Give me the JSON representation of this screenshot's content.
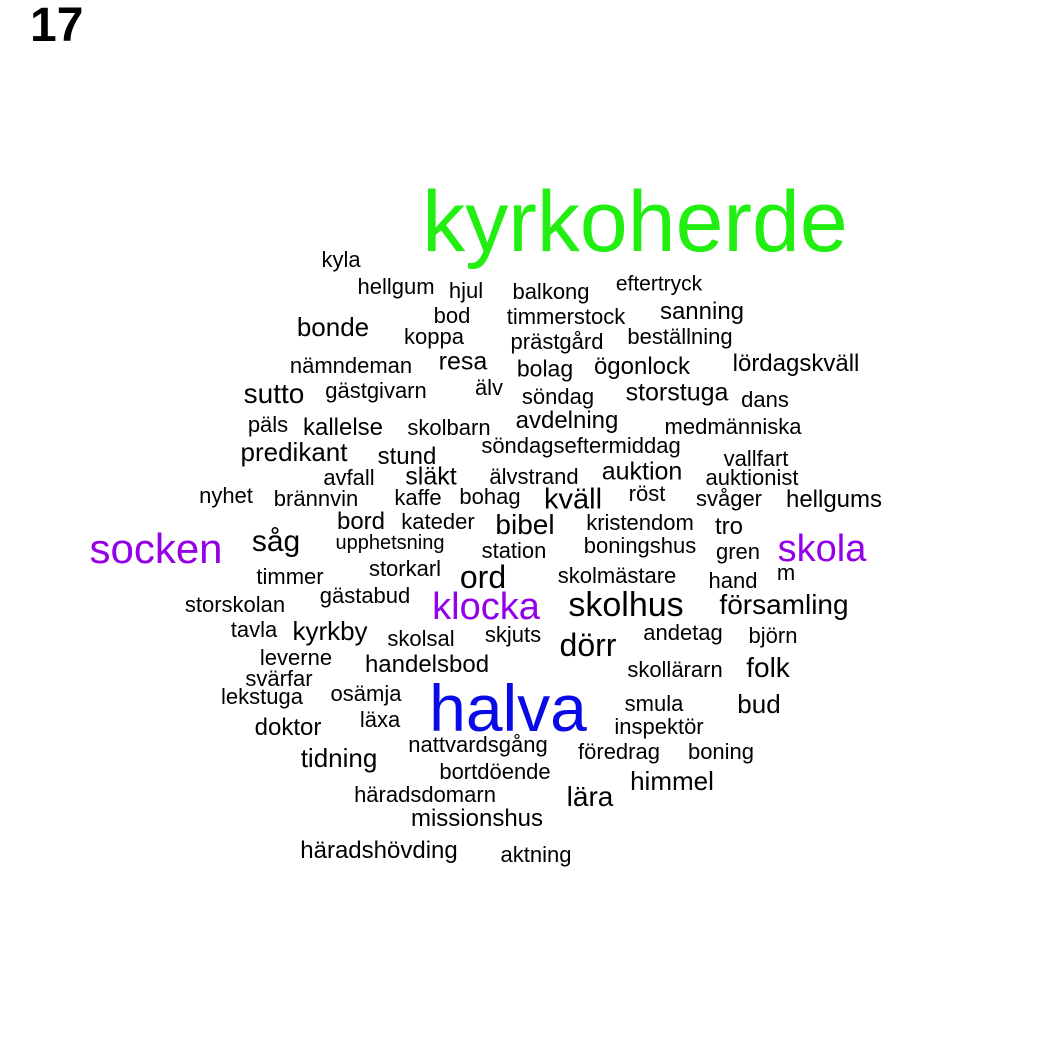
{
  "panel_number": "17",
  "colors": {
    "default": "#000000",
    "highlight_green": "#22ee11",
    "highlight_purple": "#9400e8",
    "highlight_blue": "#0a0ae6"
  },
  "words": [
    "kyrkoherde",
    "halva",
    "socken",
    "skola",
    "klocka",
    "kyla",
    "hellgum",
    "hjul",
    "balkong",
    "eftertryck",
    "bod",
    "timmerstock",
    "sanning",
    "bonde",
    "koppa",
    "prästgård",
    "beställning",
    "nämndeman",
    "resa",
    "bolag",
    "ögonlock",
    "lördagskväll",
    "sutto",
    "gästgivarn",
    "älv",
    "söndag",
    "storstuga",
    "dans",
    "päls",
    "kallelse",
    "skolbarn",
    "avdelning",
    "medmänniska",
    "predikant",
    "söndagseftermiddag",
    "stund",
    "vallfart",
    "avfall",
    "släkt",
    "älvstrand",
    "auktion",
    "auktionist",
    "nyhet",
    "brännvin",
    "kaffe",
    "bohag",
    "kväll",
    "röst",
    "svåger",
    "hellgums",
    "bord",
    "kateder",
    "bibel",
    "kristendom",
    "tro",
    "såg",
    "upphetsning",
    "station",
    "boningshus",
    "gren",
    "timmer",
    "storkarl",
    "ord",
    "skolmästare",
    "hand",
    "m",
    "storskolan",
    "gästabud",
    "skolhus",
    "församling",
    "tavla",
    "kyrkby",
    "skolsal",
    "skjuts",
    "dörr",
    "andetag",
    "björn",
    "leverne",
    "handelsbod",
    "skollärarn",
    "folk",
    "svärfar",
    "lekstuga",
    "osämja",
    "smula",
    "bud",
    "doktor",
    "läxa",
    "inspektör",
    "nattvardsgång",
    "föredrag",
    "boning",
    "tidning",
    "bortdöende",
    "himmel",
    "häradsdomarn",
    "lära",
    "missionshus",
    "häradshövding",
    "aktning"
  ]
}
